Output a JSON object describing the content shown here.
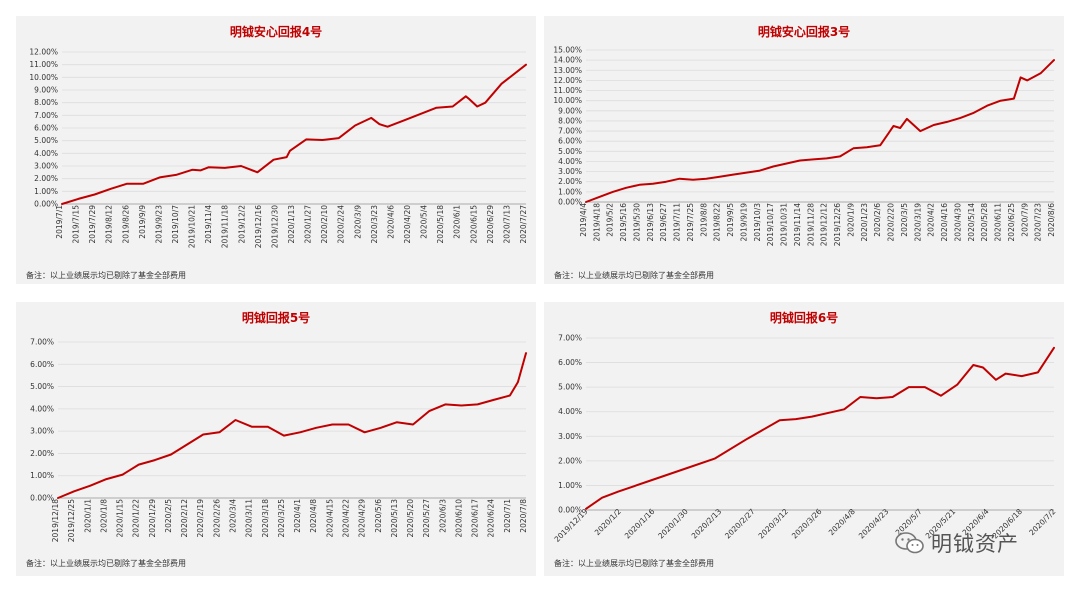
{
  "watermark": {
    "text": "明钺资产",
    "icon": "wechat-icon"
  },
  "charts": [
    {
      "title": "明钺安心回报4号",
      "note": "备注：以上业绩展示均已剔除了基金全部费用",
      "type": "line",
      "line_color": "#c00000",
      "title_color": "#c00000",
      "ylim": [
        0,
        12
      ],
      "y_ticks": [
        "0.00%",
        "1.00%",
        "2.00%",
        "3.00%",
        "4.00%",
        "5.00%",
        "6.00%",
        "7.00%",
        "8.00%",
        "9.00%",
        "10.00%",
        "11.00%",
        "12.00%"
      ],
      "x_ticks": [
        "2019/7/1",
        "2019/7/15",
        "2019/7/29",
        "2019/8/12",
        "2019/8/26",
        "2019/9/9",
        "2019/9/23",
        "2019/10/7",
        "2019/10/21",
        "2019/11/4",
        "2019/11/18",
        "2019/12/2",
        "2019/12/16",
        "2019/12/30",
        "2020/1/13",
        "2020/1/27",
        "2020/2/10",
        "2020/2/24",
        "2020/3/9",
        "2020/3/23",
        "2020/4/6",
        "2020/4/20",
        "2020/5/4",
        "2020/5/18",
        "2020/6/1",
        "2020/6/15",
        "2020/6/29",
        "2020/7/13",
        "2020/7/27"
      ],
      "x": [
        0,
        1,
        2,
        3,
        4,
        5,
        6,
        7,
        8,
        8.5,
        9,
        10,
        11,
        12,
        13,
        13.8,
        14,
        15,
        16,
        17,
        18,
        19,
        19.5,
        20,
        21,
        22,
        23,
        24,
        24.8,
        25,
        25.5,
        26,
        27,
        28.5
      ],
      "values": [
        0,
        0.4,
        0.75,
        1.2,
        1.6,
        1.6,
        2.1,
        2.3,
        2.7,
        2.65,
        2.9,
        2.85,
        3.0,
        2.5,
        3.5,
        3.7,
        4.2,
        5.1,
        5.05,
        5.2,
        6.2,
        6.8,
        6.3,
        6.1,
        6.6,
        7.1,
        7.6,
        7.7,
        8.5,
        8.3,
        7.7,
        8.0,
        9.5,
        11.0
      ]
    },
    {
      "title": "明钺安心回报3号",
      "note": "备注：以上业绩展示均已剔除了基金全部费用",
      "type": "line",
      "line_color": "#c00000",
      "title_color": "#c00000",
      "ylim": [
        0,
        15
      ],
      "y_ticks": [
        "0.00%",
        "1.00%",
        "2.00%",
        "3.00%",
        "4.00%",
        "5.00%",
        "6.00%",
        "7.00%",
        "8.00%",
        "9.00%",
        "10.00%",
        "11.00%",
        "12.00%",
        "13.00%",
        "14.00%",
        "15.00%"
      ],
      "x_ticks": [
        "2019/4/4",
        "2019/4/18",
        "2019/5/2",
        "2019/5/16",
        "2019/5/30",
        "2019/6/13",
        "2019/6/27",
        "2019/7/11",
        "2019/7/25",
        "2019/8/8",
        "2019/8/22",
        "2019/9/5",
        "2019/9/19",
        "2019/10/3",
        "2019/10/17",
        "2019/10/31",
        "2019/11/14",
        "2019/11/28",
        "2019/12/12",
        "2019/12/26",
        "2020/1/9",
        "2020/1/23",
        "2020/2/6",
        "2020/2/20",
        "2020/3/5",
        "2020/3/19",
        "2020/4/2",
        "2020/4/16",
        "2020/4/30",
        "2020/5/14",
        "2020/5/28",
        "2020/6/11",
        "2020/6/25",
        "2020/7/9",
        "2020/7/23",
        "2020/8/6"
      ],
      "x": [
        0,
        1,
        2,
        3,
        4,
        5,
        6,
        7,
        8,
        9,
        10,
        11,
        12,
        13,
        14,
        15,
        16,
        17,
        18,
        19,
        20,
        21,
        22,
        23,
        23.5,
        24,
        25,
        26,
        27,
        28,
        29,
        30,
        31,
        32,
        32.5,
        33,
        34,
        35
      ],
      "values": [
        0,
        0.5,
        1.0,
        1.4,
        1.7,
        1.8,
        2.0,
        2.3,
        2.2,
        2.3,
        2.5,
        2.7,
        2.9,
        3.1,
        3.5,
        3.8,
        4.1,
        4.2,
        4.3,
        4.5,
        5.3,
        5.4,
        5.6,
        7.5,
        7.3,
        8.2,
        7.0,
        7.6,
        7.9,
        8.3,
        8.8,
        9.5,
        10.0,
        10.2,
        12.3,
        12.0,
        12.7,
        14.0
      ]
    },
    {
      "title": "明钺回报5号",
      "note": "备注：以上业绩展示均已剔除了基金全部费用",
      "type": "line",
      "line_color": "#c00000",
      "title_color": "#c00000",
      "ylim": [
        0,
        7
      ],
      "y_ticks": [
        "0.00%",
        "1.00%",
        "2.00%",
        "3.00%",
        "4.00%",
        "5.00%",
        "6.00%",
        "7.00%"
      ],
      "x_ticks": [
        "2019/12/18",
        "2019/12/25",
        "2020/1/1",
        "2020/1/8",
        "2020/1/15",
        "2020/1/22",
        "2020/1/29",
        "2020/2/5",
        "2020/2/12",
        "2020/2/19",
        "2020/2/26",
        "2020/3/4",
        "2020/3/11",
        "2020/3/18",
        "2020/3/25",
        "2020/4/1",
        "2020/4/8",
        "2020/4/15",
        "2020/4/22",
        "2020/4/29",
        "2020/5/6",
        "2020/5/13",
        "2020/5/20",
        "2020/5/27",
        "2020/6/3",
        "2020/6/10",
        "2020/6/17",
        "2020/6/24",
        "2020/7/1",
        "2020/7/8"
      ],
      "x": [
        0,
        1,
        2,
        3,
        4,
        5,
        6,
        7,
        8,
        9,
        10,
        11,
        12,
        13,
        14,
        15,
        16,
        17,
        18,
        19,
        20,
        21,
        22,
        23,
        24,
        25,
        26,
        27,
        28,
        28.5,
        29
      ],
      "values": [
        0,
        0.3,
        0.55,
        0.85,
        1.05,
        1.5,
        1.7,
        1.95,
        2.4,
        2.85,
        2.95,
        3.5,
        3.2,
        3.2,
        2.8,
        2.95,
        3.15,
        3.3,
        3.3,
        2.95,
        3.15,
        3.4,
        3.3,
        3.9,
        4.2,
        4.15,
        4.2,
        4.4,
        4.6,
        5.2,
        6.5
      ]
    },
    {
      "title": "明钺回报6号",
      "note": "备注：以上业绩展示均已剔除了基金全部费用",
      "type": "line",
      "line_color": "#c00000",
      "title_color": "#c00000",
      "ylim": [
        0,
        7
      ],
      "y_ticks": [
        "0.00%",
        "1.00%",
        "2.00%",
        "3.00%",
        "4.00%",
        "5.00%",
        "6.00%",
        "7.00%"
      ],
      "x_ticks": [
        "2019/12/19",
        "2020/1/2",
        "2020/1/16",
        "2020/1/30",
        "2020/2/13",
        "2020/2/27",
        "2020/3/12",
        "2020/3/26",
        "2020/4/8",
        "2020/4/23",
        "2020/5/7",
        "2020/5/21",
        "2020/6/4",
        "2020/6/18",
        "2020/7/2"
      ],
      "x": [
        0,
        0.5,
        1,
        2,
        3,
        4,
        5,
        6,
        6.5,
        7,
        8,
        8.5,
        9,
        9.5,
        10,
        10.5,
        11,
        11.5,
        12,
        12.3,
        12.7,
        13,
        13.5,
        14,
        14.5
      ],
      "values": [
        0.05,
        0.5,
        0.75,
        1.2,
        1.65,
        2.1,
        2.9,
        3.65,
        3.7,
        3.8,
        4.1,
        4.6,
        4.55,
        4.6,
        5.0,
        5.0,
        4.65,
        5.1,
        5.9,
        5.8,
        5.3,
        5.55,
        5.45,
        5.6,
        6.6
      ]
    }
  ]
}
